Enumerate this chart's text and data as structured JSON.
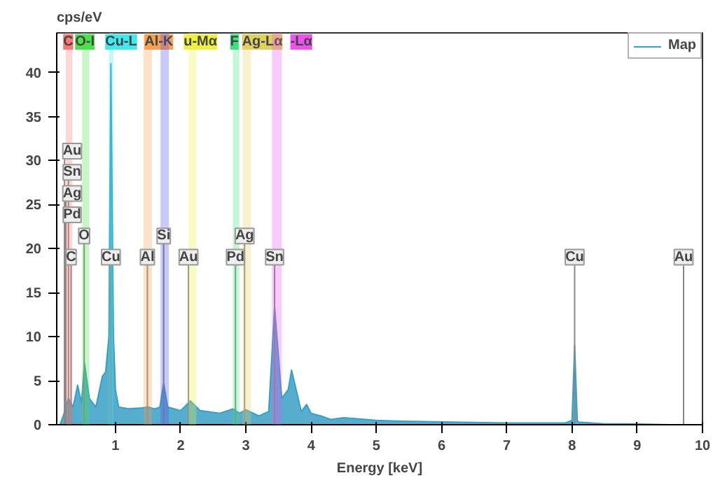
{
  "chart_data": {
    "type": "area",
    "ylabel": "cps/eV",
    "xlabel": "Energy [keV]",
    "xlim": [
      0.1,
      10
    ],
    "ylim": [
      0,
      44.5
    ],
    "xticks": [
      1,
      2,
      3,
      4,
      5,
      6,
      7,
      8,
      9,
      10
    ],
    "yticks": [
      0,
      5,
      10,
      15,
      20,
      25,
      30,
      35,
      40
    ],
    "grid": false,
    "legend": "top right",
    "series": [
      {
        "name": "Map",
        "color": "#3a9fc4",
        "x": [
          0.15,
          0.2,
          0.28,
          0.35,
          0.42,
          0.48,
          0.525,
          0.6,
          0.7,
          0.8,
          0.85,
          0.9,
          0.93,
          0.97,
          1.0,
          1.05,
          1.2,
          1.4,
          1.5,
          1.6,
          1.68,
          1.74,
          1.8,
          2.0,
          2.15,
          2.3,
          2.6,
          2.8,
          2.9,
          3.0,
          3.2,
          3.35,
          3.44,
          3.55,
          3.65,
          3.7,
          3.85,
          3.93,
          4.0,
          4.15,
          4.3,
          4.5,
          5.0,
          5.4,
          6.2,
          7.0,
          7.9,
          8.0,
          8.04,
          8.08,
          8.1,
          8.5,
          8.9,
          9.5,
          9.8
        ],
        "values": [
          0,
          1,
          3,
          2,
          4.5,
          2.5,
          7,
          3,
          2,
          5.5,
          6,
          10,
          41,
          10,
          4,
          2,
          1.8,
          1.9,
          2,
          1.8,
          2,
          4.7,
          2,
          1.6,
          2.7,
          1.6,
          1.3,
          1.8,
          1.3,
          1.7,
          1,
          1.5,
          13.4,
          3,
          4,
          6.2,
          1.5,
          2.3,
          1.3,
          1,
          0.6,
          0.8,
          0.5,
          0.4,
          0.3,
          0.2,
          0.2,
          0.5,
          9,
          0.5,
          0.3,
          0.1,
          0.1,
          0,
          0
        ]
      }
    ],
    "bands": [
      {
        "axis": "x",
        "from": 0.24,
        "to": 0.34,
        "label": "C",
        "color": "#f87878"
      },
      {
        "axis": "x",
        "from": 0.49,
        "to": 0.6,
        "label": "O-I",
        "color": "#4ce04c"
      },
      {
        "axis": "x",
        "from": 0.9,
        "to": 0.97,
        "label": "Cu-L",
        "color": "#40e8f0"
      },
      {
        "axis": "x",
        "from": 1.43,
        "to": 1.56,
        "label": "Al-K",
        "color": "#f8a050"
      },
      {
        "axis": "x",
        "from": 1.69,
        "to": 1.82,
        "label": null,
        "color": "#5050f0"
      },
      {
        "axis": "x",
        "from": 2.12,
        "to": 2.24,
        "label": "u-Mα",
        "color": "#f0f040"
      },
      {
        "axis": "x",
        "from": 2.8,
        "to": 2.9,
        "label": "F",
        "color": "#40e080"
      },
      {
        "axis": "x",
        "from": 2.95,
        "to": 3.08,
        "label": "Ag-Lα",
        "color": "#e0d060"
      },
      {
        "axis": "x",
        "from": 3.4,
        "to": 3.55,
        "label": "-Lα",
        "color": "#f050f0"
      }
    ],
    "annotations": [
      {
        "text": "C",
        "x": 0.32
      },
      {
        "text": "Cu",
        "x": 0.93
      },
      {
        "text": "Al",
        "x": 1.49
      },
      {
        "text": "Au",
        "x": 2.12
      },
      {
        "text": "Pd",
        "x": 2.84
      },
      {
        "text": "Sn",
        "x": 3.44
      },
      {
        "text": "Cu",
        "x": 8.04
      },
      {
        "text": "Au",
        "x": 9.71
      },
      {
        "text": "O",
        "x": 0.52
      },
      {
        "text": "Si",
        "x": 1.74
      },
      {
        "text": "Ag",
        "x": 2.98
      },
      {
        "text": "Pd",
        "x": 0.22
      },
      {
        "text": "Ag",
        "x": 0.24
      },
      {
        "text": "Sn",
        "x": 0.28
      },
      {
        "text": "Au",
        "x": 0.22
      }
    ]
  }
}
